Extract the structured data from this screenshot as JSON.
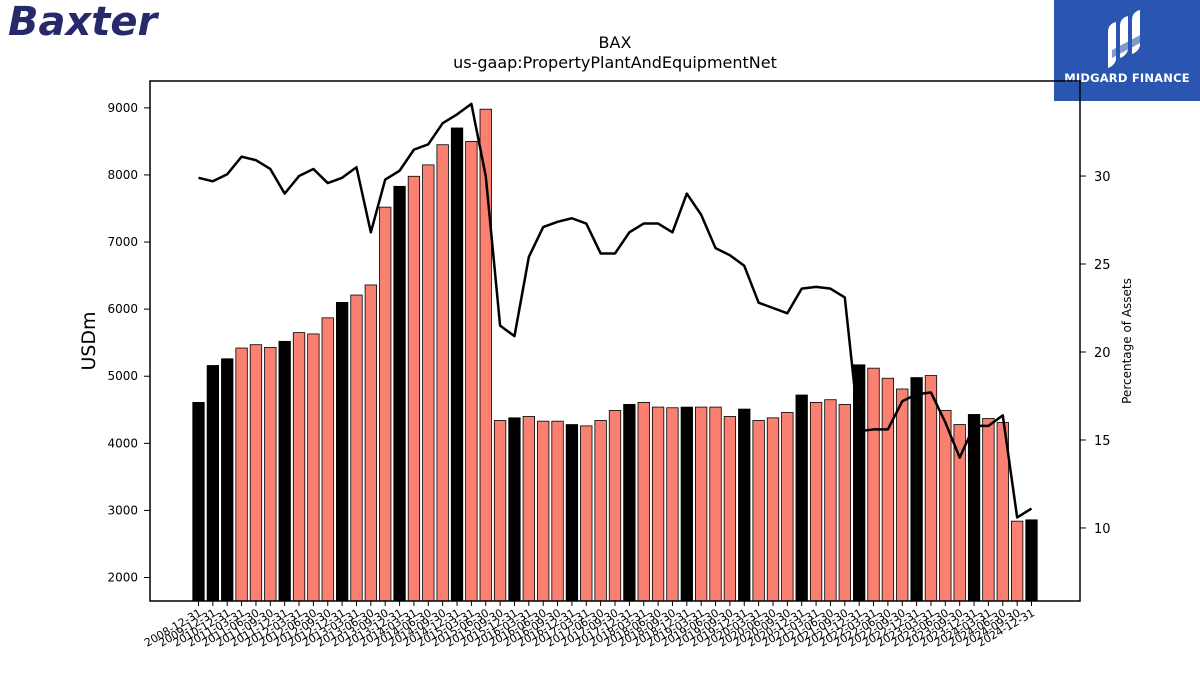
{
  "logos": {
    "left_text": "Baxter",
    "right_text": "MIDGARD FINANCE",
    "left_color": "#262a6b",
    "right_bg": "#2a56b1"
  },
  "chart_data": {
    "type": "bar",
    "title": "BAX",
    "subtitle": "us-gaap:PropertyPlantAndEquipmentNet",
    "ylabel": "USDm",
    "y2label": "Percentage of Assets",
    "ylim": [
      1650,
      9400
    ],
    "y2lim": [
      5.85,
      35.4
    ],
    "yticks": [
      2000,
      3000,
      4000,
      5000,
      6000,
      7000,
      8000,
      9000
    ],
    "y2ticks": [
      10,
      15,
      20,
      25,
      30
    ],
    "colors": {
      "annual": "#000000",
      "quarter": "#fa8072",
      "line": "#000000"
    },
    "categories": [
      "2008-12-31",
      "2009-12-31",
      "2010-12-31",
      "2011-03-31",
      "2011-06-30",
      "2011-09-30",
      "2011-12-31",
      "2012-03-31",
      "2012-06-30",
      "2012-09-30",
      "2012-12-31",
      "2013-03-31",
      "2013-06-30",
      "2013-09-30",
      "2013-12-31",
      "2014-03-31",
      "2014-06-30",
      "2014-09-30",
      "2014-12-31",
      "2015-03-31",
      "2015-06-30",
      "2015-09-30",
      "2015-12-31",
      "2016-03-31",
      "2016-06-30",
      "2016-09-30",
      "2016-12-31",
      "2017-03-31",
      "2017-06-30",
      "2017-09-30",
      "2017-12-31",
      "2018-03-31",
      "2018-06-30",
      "2018-09-30",
      "2018-12-31",
      "2019-03-31",
      "2019-06-30",
      "2019-09-30",
      "2019-12-31",
      "2020-03-31",
      "2020-06-30",
      "2020-09-30",
      "2020-12-31",
      "2021-03-31",
      "2021-06-30",
      "2021-09-30",
      "2021-12-31",
      "2022-03-31",
      "2022-06-30",
      "2022-09-30",
      "2022-12-31",
      "2023-03-31",
      "2023-06-30",
      "2023-09-30",
      "2023-12-31",
      "2024-03-31",
      "2024-06-30",
      "2024-09-30",
      "2024-12-31"
    ],
    "series": [
      {
        "type": "bar",
        "values": [
          4610,
          5160,
          5260,
          5420,
          5470,
          5430,
          5520,
          5650,
          5630,
          5870,
          6100,
          6210,
          6360,
          7520,
          7830,
          7980,
          8150,
          8450,
          8700,
          8500,
          8980,
          4340,
          4380,
          4400,
          4330,
          4330,
          4280,
          4260,
          4340,
          4490,
          4580,
          4610,
          4540,
          4530,
          4540,
          4540,
          4540,
          4400,
          4510,
          4340,
          4380,
          4460,
          4720,
          4610,
          4650,
          4580,
          5170,
          5120,
          4970,
          4810,
          4980,
          5010,
          4490,
          4280,
          4430,
          4370,
          4310,
          2840,
          2860
        ],
        "annual": [
          true,
          true,
          true,
          false,
          false,
          false,
          true,
          false,
          false,
          false,
          true,
          false,
          false,
          false,
          true,
          false,
          false,
          false,
          true,
          false,
          false,
          false,
          true,
          false,
          false,
          false,
          true,
          false,
          false,
          false,
          true,
          false,
          false,
          false,
          true,
          false,
          false,
          false,
          true,
          false,
          false,
          false,
          true,
          false,
          false,
          false,
          true,
          false,
          false,
          false,
          true,
          false,
          false,
          false,
          true,
          false,
          false,
          false,
          true
        ]
      },
      {
        "type": "line",
        "axis": "right",
        "values": [
          29.9,
          29.7,
          30.1,
          31.1,
          30.9,
          30.4,
          29.0,
          30.0,
          30.4,
          29.6,
          29.9,
          30.5,
          26.8,
          29.8,
          30.3,
          31.5,
          31.8,
          33.0,
          33.5,
          34.1,
          30.0,
          21.5,
          20.9,
          25.4,
          27.1,
          27.4,
          27.6,
          27.3,
          25.6,
          25.6,
          26.8,
          27.3,
          27.3,
          26.8,
          29.0,
          27.8,
          25.9,
          25.5,
          24.9,
          22.8,
          22.5,
          22.2,
          23.6,
          23.7,
          23.6,
          23.1,
          15.5,
          15.6,
          15.6,
          17.2,
          17.6,
          17.7,
          16.0,
          14.0,
          15.8,
          15.8,
          16.4,
          10.6,
          11.1
        ]
      }
    ]
  }
}
